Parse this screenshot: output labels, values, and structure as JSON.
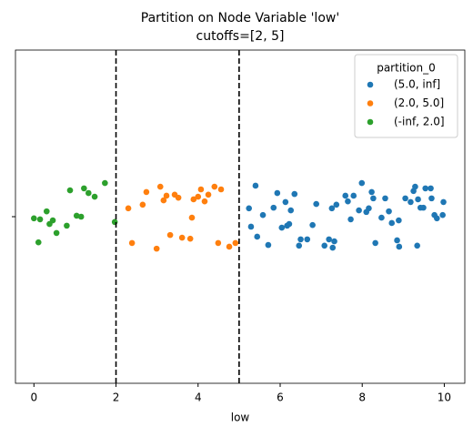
{
  "chart_data": {
    "type": "scatter",
    "title": "Partition on Node Variable 'low'",
    "subtitle": "cutoffs=[2, 5]",
    "xlabel": "low",
    "xlim": [
      -0.45,
      10.5
    ],
    "xticks": [
      0,
      2,
      4,
      6,
      8,
      10
    ],
    "ylim": [
      0.5,
      -0.5
    ],
    "yticks": [
      {
        "value": 0,
        "label": null
      }
    ],
    "vlines": [
      2,
      5
    ],
    "legend_title": "partition_0",
    "legend": "upper right",
    "series": [
      {
        "name": "(5.0, inf]",
        "color": "#1f77b4",
        "x": [
          5.24,
          5.29,
          5.4,
          5.44,
          5.58,
          5.71,
          5.84,
          5.93,
          6.04,
          6.13,
          6.17,
          6.22,
          6.26,
          6.35,
          6.46,
          6.5,
          6.66,
          6.79,
          6.88,
          7.08,
          7.19,
          7.26,
          7.28,
          7.32,
          7.37,
          7.59,
          7.65,
          7.72,
          7.79,
          7.92,
          7.99,
          8.1,
          8.16,
          8.23,
          8.27,
          8.32,
          8.47,
          8.56,
          8.65,
          8.72,
          8.85,
          8.89,
          8.9,
          9.05,
          9.18,
          9.25,
          9.29,
          9.34,
          9.36,
          9.42,
          9.49,
          9.54,
          9.67,
          9.69,
          9.76,
          9.82,
          9.96,
          9.98
        ],
        "values": [
          -0.025,
          0.03,
          -0.093,
          0.06,
          -0.005,
          0.085,
          -0.027,
          -0.071,
          0.033,
          -0.044,
          0.027,
          0.022,
          -0.019,
          -0.068,
          0.087,
          0.068,
          0.068,
          0.025,
          -0.038,
          0.087,
          0.068,
          -0.025,
          0.093,
          0.074,
          -0.036,
          -0.063,
          -0.046,
          0.008,
          -0.063,
          -0.019,
          -0.101,
          -0.014,
          -0.025,
          -0.074,
          -0.055,
          0.079,
          0.003,
          -0.055,
          -0.016,
          0.019,
          0.071,
          0.011,
          0.09,
          -0.055,
          -0.044,
          -0.077,
          -0.09,
          0.087,
          -0.052,
          -0.027,
          -0.027,
          -0.085,
          -0.085,
          -0.055,
          -0.005,
          0.005,
          -0.005,
          -0.044
        ]
      },
      {
        "name": "(2.0, 5.0]",
        "color": "#ff7f0e",
        "x": [
          2.3,
          2.39,
          2.65,
          2.74,
          2.99,
          3.08,
          3.16,
          3.23,
          3.32,
          3.43,
          3.52,
          3.61,
          3.81,
          3.85,
          3.89,
          4.0,
          4.07,
          4.16,
          4.25,
          4.4,
          4.49,
          4.56,
          4.76,
          4.91
        ],
        "values": [
          -0.025,
          0.079,
          -0.036,
          -0.074,
          0.096,
          -0.09,
          -0.049,
          -0.063,
          0.055,
          -0.066,
          -0.057,
          0.063,
          0.066,
          0.003,
          -0.052,
          -0.06,
          -0.082,
          -0.046,
          -0.066,
          -0.09,
          0.079,
          -0.082,
          0.09,
          0.079
        ]
      },
      {
        "name": "(-inf, 2.0]",
        "color": "#2ca02c",
        "x": [
          0.0,
          0.15,
          0.31,
          0.11,
          0.46,
          0.38,
          0.55,
          0.8,
          0.88,
          1.04,
          1.15,
          1.22,
          1.33,
          1.48,
          1.73,
          1.97
        ],
        "values": [
          0.005,
          0.008,
          -0.016,
          0.077,
          0.011,
          0.022,
          0.049,
          0.027,
          -0.079,
          -0.003,
          0.0,
          -0.085,
          -0.071,
          -0.06,
          -0.101,
          0.016
        ]
      }
    ]
  }
}
